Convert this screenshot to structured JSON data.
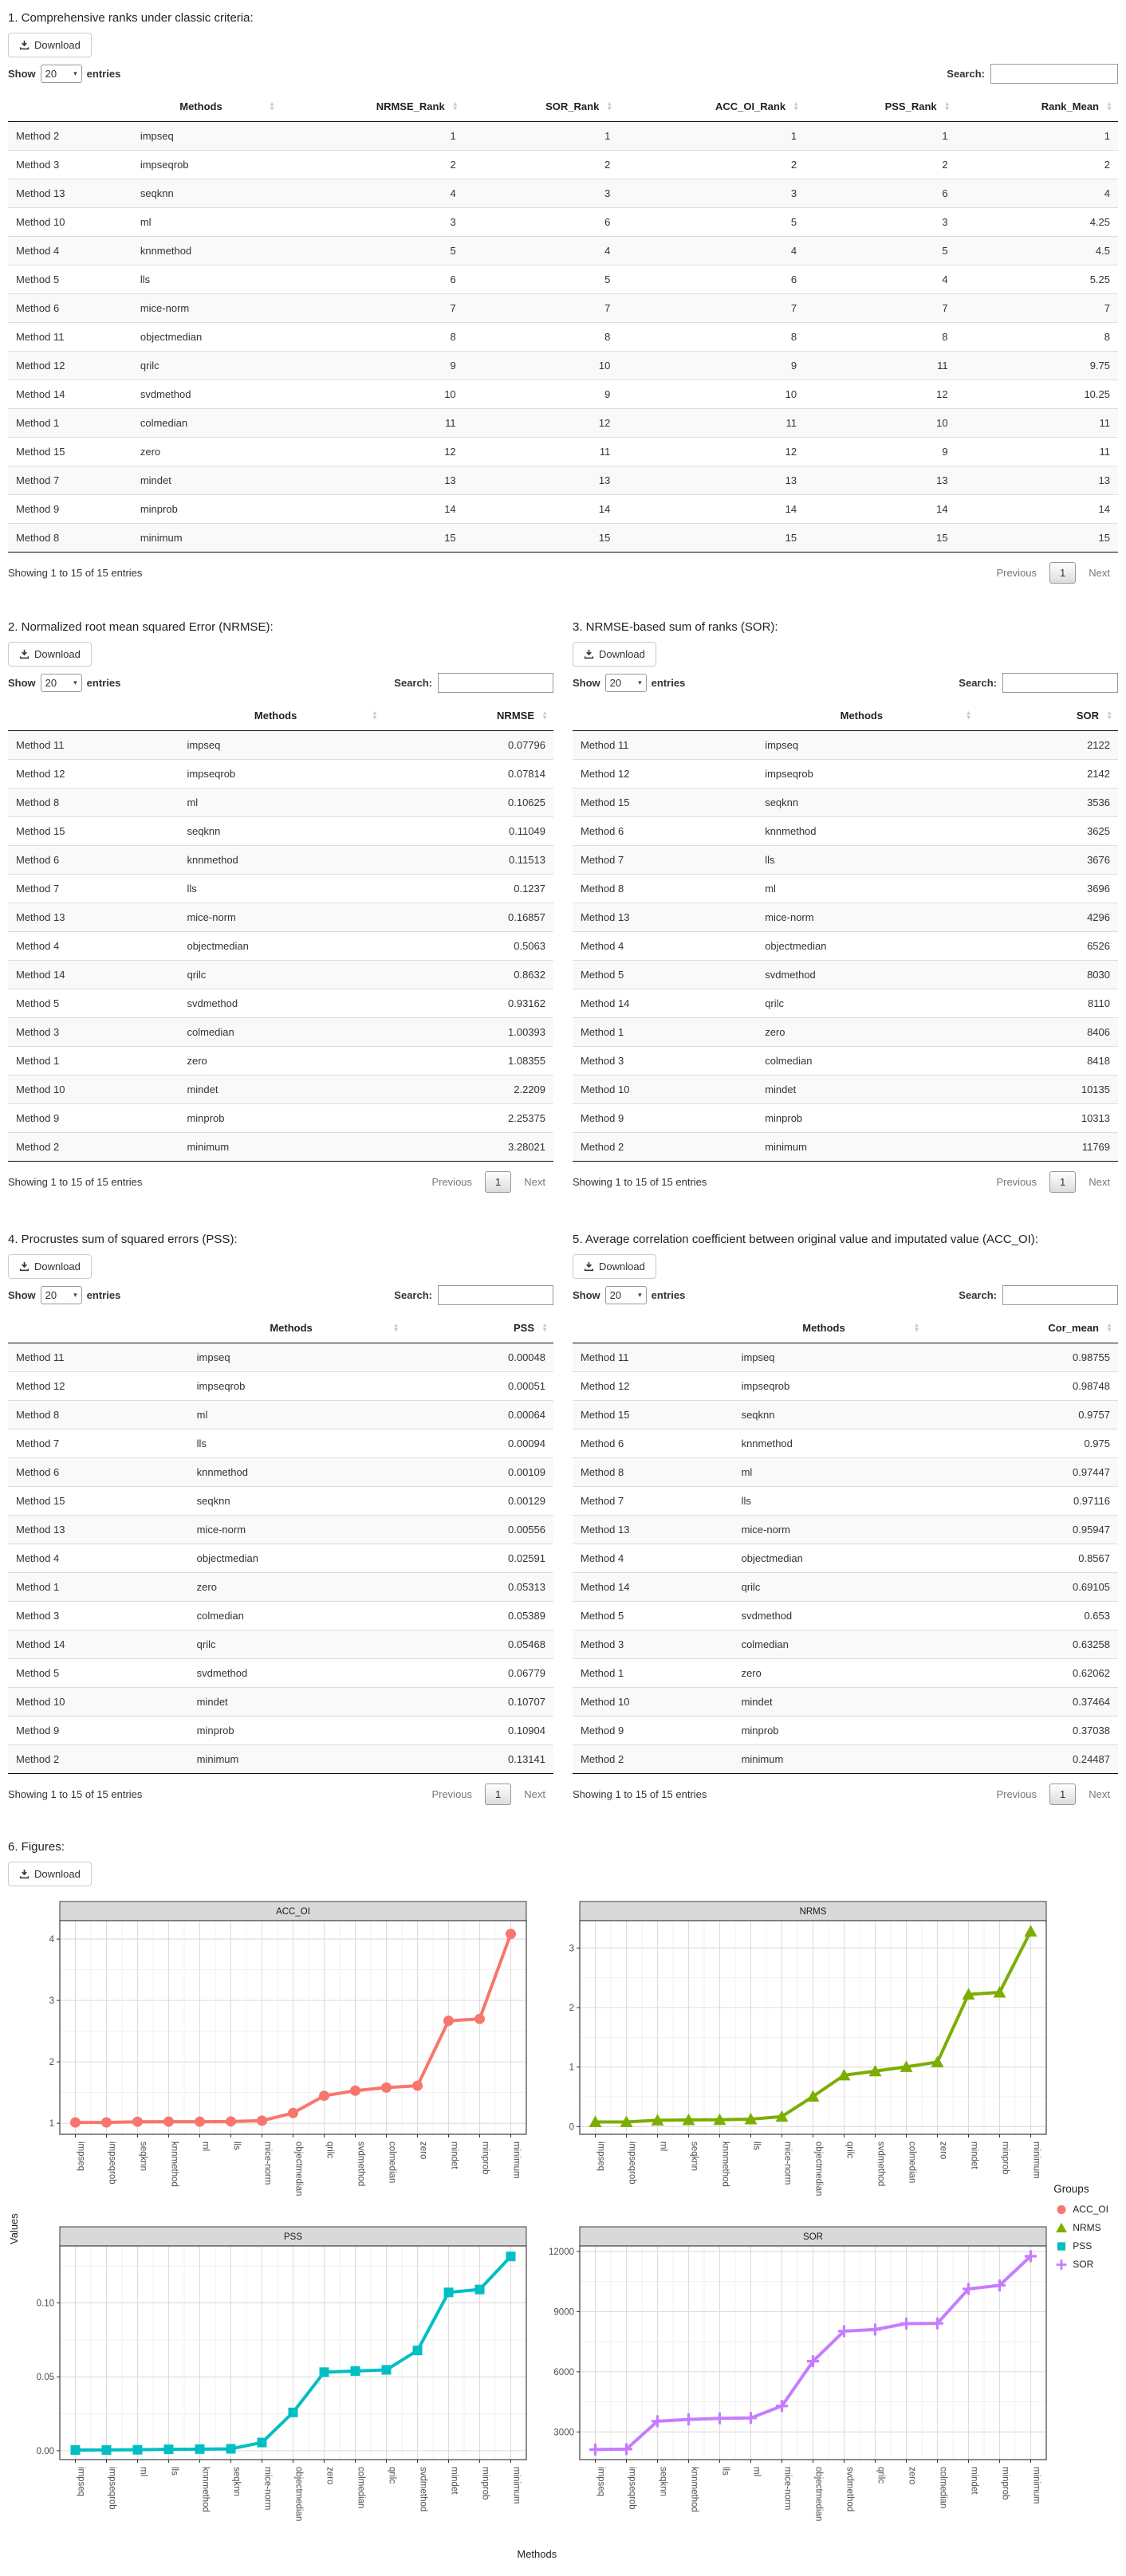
{
  "common": {
    "download_label": "Download",
    "show_label": "Show",
    "page_size": "20",
    "entries_label": "entries",
    "search_label": "Search:",
    "search_value": "",
    "info": "Showing 1 to 15 of 15 entries",
    "previous_label": "Previous",
    "page_label": "1",
    "next_label": "Next"
  },
  "sections": [
    {
      "title": "1. Comprehensive ranks under classic criteria:",
      "table": {
        "headers": [
          "",
          "Methods",
          "NRMSE_Rank",
          "SOR_Rank",
          "ACC_OI_Rank",
          "PSS_Rank",
          "Rank_Mean"
        ],
        "rows": [
          [
            "Method 2",
            "impseq",
            "1",
            "1",
            "1",
            "1",
            "1"
          ],
          [
            "Method 3",
            "impseqrob",
            "2",
            "2",
            "2",
            "2",
            "2"
          ],
          [
            "Method 13",
            "seqknn",
            "4",
            "3",
            "3",
            "6",
            "4"
          ],
          [
            "Method 10",
            "ml",
            "3",
            "6",
            "5",
            "3",
            "4.25"
          ],
          [
            "Method 4",
            "knnmethod",
            "5",
            "4",
            "4",
            "5",
            "4.5"
          ],
          [
            "Method 5",
            "lls",
            "6",
            "5",
            "6",
            "4",
            "5.25"
          ],
          [
            "Method 6",
            "mice-norm",
            "7",
            "7",
            "7",
            "7",
            "7"
          ],
          [
            "Method 11",
            "objectmedian",
            "8",
            "8",
            "8",
            "8",
            "8"
          ],
          [
            "Method 12",
            "qrilc",
            "9",
            "10",
            "9",
            "11",
            "9.75"
          ],
          [
            "Method 14",
            "svdmethod",
            "10",
            "9",
            "10",
            "12",
            "10.25"
          ],
          [
            "Method 1",
            "colmedian",
            "11",
            "12",
            "11",
            "10",
            "11"
          ],
          [
            "Method 15",
            "zero",
            "12",
            "11",
            "12",
            "9",
            "11"
          ],
          [
            "Method 7",
            "mindet",
            "13",
            "13",
            "13",
            "13",
            "13"
          ],
          [
            "Method 9",
            "minprob",
            "14",
            "14",
            "14",
            "14",
            "14"
          ],
          [
            "Method 8",
            "minimum",
            "15",
            "15",
            "15",
            "15",
            "15"
          ]
        ]
      }
    },
    {
      "title": "2. Normalized root mean squared Error (NRMSE):",
      "table": {
        "headers": [
          "",
          "Methods",
          "NRMSE"
        ],
        "rows": [
          [
            "Method 11",
            "impseq",
            "0.07796"
          ],
          [
            "Method 12",
            "impseqrob",
            "0.07814"
          ],
          [
            "Method 8",
            "ml",
            "0.10625"
          ],
          [
            "Method 15",
            "seqknn",
            "0.11049"
          ],
          [
            "Method 6",
            "knnmethod",
            "0.11513"
          ],
          [
            "Method 7",
            "lls",
            "0.1237"
          ],
          [
            "Method 13",
            "mice-norm",
            "0.16857"
          ],
          [
            "Method 4",
            "objectmedian",
            "0.5063"
          ],
          [
            "Method 14",
            "qrilc",
            "0.8632"
          ],
          [
            "Method 5",
            "svdmethod",
            "0.93162"
          ],
          [
            "Method 3",
            "colmedian",
            "1.00393"
          ],
          [
            "Method 1",
            "zero",
            "1.08355"
          ],
          [
            "Method 10",
            "mindet",
            "2.2209"
          ],
          [
            "Method 9",
            "minprob",
            "2.25375"
          ],
          [
            "Method 2",
            "minimum",
            "3.28021"
          ]
        ]
      }
    },
    {
      "title": "3. NRMSE-based sum of ranks (SOR):",
      "table": {
        "headers": [
          "",
          "Methods",
          "SOR"
        ],
        "rows": [
          [
            "Method 11",
            "impseq",
            "2122"
          ],
          [
            "Method 12",
            "impseqrob",
            "2142"
          ],
          [
            "Method 15",
            "seqknn",
            "3536"
          ],
          [
            "Method 6",
            "knnmethod",
            "3625"
          ],
          [
            "Method 7",
            "lls",
            "3676"
          ],
          [
            "Method 8",
            "ml",
            "3696"
          ],
          [
            "Method 13",
            "mice-norm",
            "4296"
          ],
          [
            "Method 4",
            "objectmedian",
            "6526"
          ],
          [
            "Method 5",
            "svdmethod",
            "8030"
          ],
          [
            "Method 14",
            "qrilc",
            "8110"
          ],
          [
            "Method 1",
            "zero",
            "8406"
          ],
          [
            "Method 3",
            "colmedian",
            "8418"
          ],
          [
            "Method 10",
            "mindet",
            "10135"
          ],
          [
            "Method 9",
            "minprob",
            "10313"
          ],
          [
            "Method 2",
            "minimum",
            "11769"
          ]
        ]
      }
    },
    {
      "title": "4. Procrustes sum of squared errors (PSS):",
      "table": {
        "headers": [
          "",
          "Methods",
          "PSS"
        ],
        "rows": [
          [
            "Method 11",
            "impseq",
            "0.00048"
          ],
          [
            "Method 12",
            "impseqrob",
            "0.00051"
          ],
          [
            "Method 8",
            "ml",
            "0.00064"
          ],
          [
            "Method 7",
            "lls",
            "0.00094"
          ],
          [
            "Method 6",
            "knnmethod",
            "0.00109"
          ],
          [
            "Method 15",
            "seqknn",
            "0.00129"
          ],
          [
            "Method 13",
            "mice-norm",
            "0.00556"
          ],
          [
            "Method 4",
            "objectmedian",
            "0.02591"
          ],
          [
            "Method 1",
            "zero",
            "0.05313"
          ],
          [
            "Method 3",
            "colmedian",
            "0.05389"
          ],
          [
            "Method 14",
            "qrilc",
            "0.05468"
          ],
          [
            "Method 5",
            "svdmethod",
            "0.06779"
          ],
          [
            "Method 10",
            "mindet",
            "0.10707"
          ],
          [
            "Method 9",
            "minprob",
            "0.10904"
          ],
          [
            "Method 2",
            "minimum",
            "0.13141"
          ]
        ]
      }
    },
    {
      "title": "5. Average correlation coefficient between original value and imputated value (ACC_OI):",
      "table": {
        "headers": [
          "",
          "Methods",
          "Cor_mean"
        ],
        "rows": [
          [
            "Method 11",
            "impseq",
            "0.98755"
          ],
          [
            "Method 12",
            "impseqrob",
            "0.98748"
          ],
          [
            "Method 15",
            "seqknn",
            "0.9757"
          ],
          [
            "Method 6",
            "knnmethod",
            "0.975"
          ],
          [
            "Method 8",
            "ml",
            "0.97447"
          ],
          [
            "Method 7",
            "lls",
            "0.97116"
          ],
          [
            "Method 13",
            "mice-norm",
            "0.95947"
          ],
          [
            "Method 4",
            "objectmedian",
            "0.8567"
          ],
          [
            "Method 14",
            "qrilc",
            "0.69105"
          ],
          [
            "Method 5",
            "svdmethod",
            "0.653"
          ],
          [
            "Method 3",
            "colmedian",
            "0.63258"
          ],
          [
            "Method 1",
            "zero",
            "0.62062"
          ],
          [
            "Method 10",
            "mindet",
            "0.37464"
          ],
          [
            "Method 9",
            "minprob",
            "0.37038"
          ],
          [
            "Method 2",
            "minimum",
            "0.24487"
          ]
        ]
      }
    },
    {
      "title": "6. Figures:"
    }
  ],
  "figure": {
    "ylabel": "Values",
    "xlabel": "Methods",
    "legend": {
      "title": "Groups",
      "items": [
        {
          "label": "ACC_OI",
          "color": "#F8766D",
          "shape": "circle"
        },
        {
          "label": "NRMS",
          "color": "#7CAE00",
          "shape": "triangle"
        },
        {
          "label": "PSS",
          "color": "#00BFC4",
          "shape": "square"
        },
        {
          "label": "SOR",
          "color": "#C77CFF",
          "shape": "plus"
        }
      ]
    }
  },
  "chart_data": [
    {
      "type": "line",
      "title": "ACC_OI",
      "color": "#F8766D",
      "shape": "circle",
      "categories": [
        "impseq",
        "impseqrob",
        "seqknn",
        "knnmethod",
        "ml",
        "lls",
        "mice-norm",
        "objectmedian",
        "qrilc",
        "svdmethod",
        "colmedian",
        "zero",
        "mindet",
        "minprob",
        "minimum"
      ],
      "values": [
        1.013,
        1.013,
        1.025,
        1.026,
        1.026,
        1.03,
        1.042,
        1.167,
        1.447,
        1.531,
        1.581,
        1.611,
        2.669,
        2.7,
        4.084
      ],
      "ylim": [
        0.82,
        4.3
      ],
      "yticks": {
        "vals": [
          1,
          2,
          3,
          4
        ],
        "labels": [
          "1",
          "2",
          "3",
          "4"
        ]
      },
      "grid": true
    },
    {
      "type": "line",
      "title": "NRMS",
      "color": "#7CAE00",
      "shape": "triangle",
      "categories": [
        "impseq",
        "impseqrob",
        "ml",
        "seqknn",
        "knnmethod",
        "lls",
        "mice-norm",
        "objectmedian",
        "qrilc",
        "svdmethod",
        "colmedian",
        "zero",
        "mindet",
        "minprob",
        "minimum"
      ],
      "values": [
        0.07796,
        0.07814,
        0.10625,
        0.11049,
        0.11513,
        0.1237,
        0.16857,
        0.5063,
        0.8632,
        0.93162,
        1.00393,
        1.08355,
        2.2209,
        2.25375,
        3.28021
      ],
      "ylim": [
        -0.13,
        3.46
      ],
      "yticks": {
        "vals": [
          0,
          1,
          2,
          3
        ],
        "labels": [
          "0",
          "1",
          "2",
          "3"
        ]
      },
      "grid": true
    },
    {
      "type": "line",
      "title": "PSS",
      "color": "#00BFC4",
      "shape": "square",
      "categories": [
        "impseq",
        "impseqrob",
        "ml",
        "lls",
        "knnmethod",
        "seqknn",
        "mice-norm",
        "objectmedian",
        "zero",
        "colmedian",
        "qrilc",
        "svdmethod",
        "mindet",
        "minprob",
        "minimum"
      ],
      "values": [
        0.00048,
        0.00051,
        0.00064,
        0.00094,
        0.00109,
        0.00129,
        0.00556,
        0.02591,
        0.05313,
        0.05389,
        0.05468,
        0.06779,
        0.10707,
        0.10904,
        0.13141
      ],
      "ylim": [
        -0.006,
        0.1385
      ],
      "yticks": {
        "vals": [
          0,
          0.05,
          0.1
        ],
        "labels": [
          "0.00",
          "0.05",
          "0.10"
        ]
      },
      "grid": true
    },
    {
      "type": "line",
      "title": "SOR",
      "color": "#C77CFF",
      "shape": "plus",
      "categories": [
        "impseq",
        "impseqrob",
        "seqknn",
        "knnmethod",
        "lls",
        "ml",
        "mice-norm",
        "objectmedian",
        "svdmethod",
        "qrilc",
        "zero",
        "colmedian",
        "mindet",
        "minprob",
        "minimum"
      ],
      "values": [
        2122,
        2142,
        3536,
        3625,
        3676,
        3696,
        4296,
        6526,
        8030,
        8110,
        8406,
        8418,
        10135,
        10313,
        11769
      ],
      "ylim": [
        1620,
        12280
      ],
      "yticks": {
        "vals": [
          3000,
          6000,
          9000,
          12000
        ],
        "labels": [
          "3000",
          "6000",
          "9000",
          "12000"
        ]
      },
      "grid": true
    }
  ]
}
